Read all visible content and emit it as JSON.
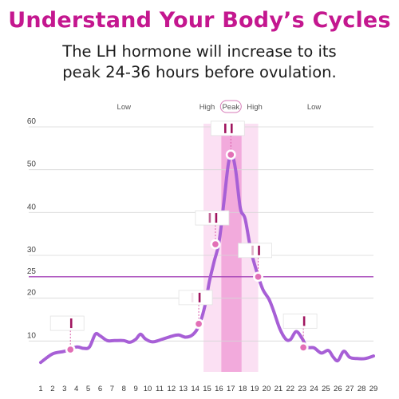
{
  "header": {
    "title": "Understand Your Body’s Cycles",
    "subtitle_line1": "The LH hormone will increase to its",
    "subtitle_line2": "peak 24-36 hours before ovulation."
  },
  "chart_data": {
    "type": "line",
    "title": "Understand Your Body’s Cycles",
    "subtitle": "The LH hormone will increase to its peak 24-36 hours before ovulation.",
    "xlabel": "",
    "ylabel": "",
    "x_ticks": [
      1,
      2,
      3,
      4,
      5,
      6,
      7,
      8,
      9,
      10,
      11,
      12,
      13,
      14,
      15,
      16,
      17,
      18,
      19,
      20,
      21,
      22,
      23,
      24,
      25,
      26,
      27,
      28,
      29
    ],
    "y_ticks": [
      10,
      20,
      25,
      30,
      40,
      50,
      60
    ],
    "xlim": [
      1,
      29
    ],
    "ylim": [
      0,
      60
    ],
    "grid": true,
    "threshold": {
      "value": 25,
      "label": "25"
    },
    "phase_labels": [
      {
        "label": "Low",
        "x": 8
      },
      {
        "label": "High",
        "x": 15
      },
      {
        "label": "Peak",
        "x": 17,
        "pill": true
      },
      {
        "label": "High",
        "x": 19
      },
      {
        "label": "Low",
        "x": 24
      }
    ],
    "highlight_bands": [
      {
        "from": 14.7,
        "to": 19.3,
        "kind": "high"
      },
      {
        "from": 16.2,
        "to": 17.9,
        "kind": "peak"
      }
    ],
    "series": [
      {
        "color": "#a75fd6",
        "points": [
          [
            1,
            5
          ],
          [
            2,
            7
          ],
          [
            3,
            7.6
          ],
          [
            4,
            8.6
          ],
          [
            4.6,
            8.3
          ],
          [
            5.1,
            8.6
          ],
          [
            5.6,
            11.6
          ],
          [
            6,
            11.2
          ],
          [
            6.6,
            10.1
          ],
          [
            7.2,
            10.1
          ],
          [
            8,
            10.1
          ],
          [
            8.5,
            9.7
          ],
          [
            9,
            10.4
          ],
          [
            9.4,
            11.6
          ],
          [
            9.8,
            10.5
          ],
          [
            10.4,
            9.8
          ],
          [
            11,
            10.2
          ],
          [
            12,
            11.1
          ],
          [
            12.6,
            11.4
          ],
          [
            13.2,
            10.9
          ],
          [
            13.8,
            11.5
          ],
          [
            14.3,
            13.5
          ],
          [
            14.8,
            18
          ],
          [
            15.2,
            24
          ],
          [
            15.6,
            28.6
          ],
          [
            16,
            33
          ],
          [
            16.4,
            42
          ],
          [
            16.8,
            51.5
          ],
          [
            17.1,
            53.2
          ],
          [
            17.4,
            50
          ],
          [
            17.8,
            41
          ],
          [
            18.2,
            38.5
          ],
          [
            18.7,
            31
          ],
          [
            19.2,
            26
          ],
          [
            19.7,
            22
          ],
          [
            20.2,
            19.8
          ],
          [
            20.6,
            17
          ],
          [
            21.1,
            13
          ],
          [
            21.6,
            10.5
          ],
          [
            22,
            10.3
          ],
          [
            22.5,
            12.2
          ],
          [
            23,
            10.6
          ],
          [
            23.4,
            8.6
          ],
          [
            24,
            8.4
          ],
          [
            24.6,
            7.2
          ],
          [
            25.2,
            7.8
          ],
          [
            25.6,
            6.3
          ],
          [
            26,
            5.4
          ],
          [
            26.5,
            7.6
          ],
          [
            27,
            6.2
          ],
          [
            27.6,
            5.9
          ],
          [
            28.3,
            5.9
          ],
          [
            29,
            6.5
          ]
        ]
      }
    ],
    "test_markers": [
      {
        "x": 3.5,
        "y": 8,
        "lines": "one"
      },
      {
        "x": 14.3,
        "y": 14,
        "lines": "one-faint"
      },
      {
        "x": 15.7,
        "y": 32.6,
        "lines": "two"
      },
      {
        "x": 17,
        "y": 53.5,
        "lines": "two-strong"
      },
      {
        "x": 19.3,
        "y": 25,
        "lines": "two-faint"
      },
      {
        "x": 23.1,
        "y": 8.5,
        "lines": "one"
      }
    ]
  },
  "colors": {
    "title": "#c4178f",
    "line": "#a75fd6",
    "threshold": "#a646b8",
    "high_band": "#f9d6ef",
    "peak_band": "#f0a0d7",
    "marker_fill": "#e26fb6",
    "test_line": "#a0155f",
    "axis_text": "#444444",
    "grid": "#d6d6d6"
  }
}
